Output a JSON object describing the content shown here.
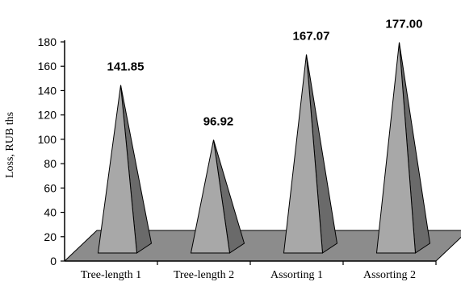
{
  "chart_data": {
    "type": "bar",
    "shape": "pyramid",
    "categories": [
      "Tree-length 1",
      "Tree-length 2",
      "Assorting 1",
      "Assorting 2"
    ],
    "values": [
      141.85,
      96.92,
      167.07,
      177.0
    ],
    "value_labels": [
      "141.85",
      "96.92",
      "167.07",
      "177.00"
    ],
    "title": "",
    "xlabel": "",
    "ylabel": "Loss, RUB ths",
    "ylim": [
      0,
      180
    ],
    "yticks": [
      "0",
      "20",
      "40",
      "60",
      "80",
      "100",
      "120",
      "140",
      "160",
      "180"
    ],
    "grid": false,
    "legend": "none",
    "colors": {
      "front": "#a8a8a8",
      "side": "#6a6a6a",
      "floor": "#8c8c8c",
      "axis": "#000000"
    }
  }
}
